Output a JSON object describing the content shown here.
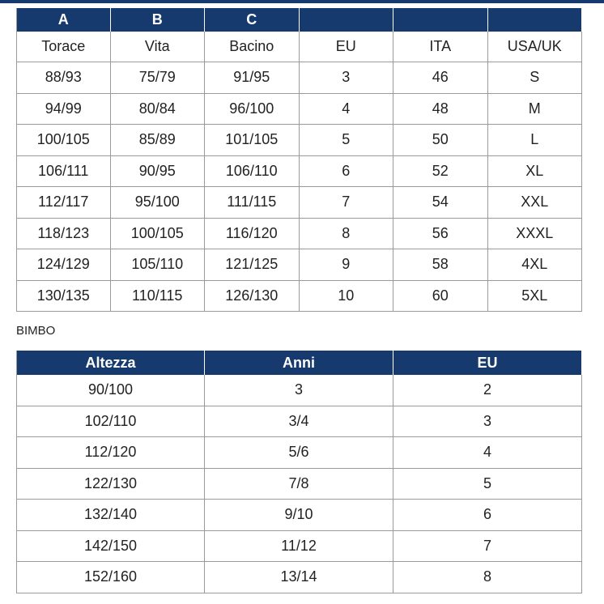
{
  "table1": {
    "header": [
      "A",
      "B",
      "C"
    ],
    "columns": [
      "Torace",
      "Vita",
      "Bacino",
      "EU",
      "ITA",
      "USA/UK"
    ],
    "rows": [
      [
        "88/93",
        "75/79",
        "91/95",
        "3",
        "46",
        "S"
      ],
      [
        "94/99",
        "80/84",
        "96/100",
        "4",
        "48",
        "M"
      ],
      [
        "100/105",
        "85/89",
        "101/105",
        "5",
        "50",
        "L"
      ],
      [
        "106/111",
        "90/95",
        "106/110",
        "6",
        "52",
        "XL"
      ],
      [
        "112/117",
        "95/100",
        "111/115",
        "7",
        "54",
        "XXL"
      ],
      [
        "118/123",
        "100/105",
        "116/120",
        "8",
        "56",
        "XXXL"
      ],
      [
        "124/129",
        "105/110",
        "121/125",
        "9",
        "58",
        "4XL"
      ],
      [
        "130/135",
        "110/115",
        "126/130",
        "10",
        "60",
        "5XL"
      ]
    ]
  },
  "section_title": "BIMBO",
  "table2": {
    "header": [
      "Altezza",
      "Anni",
      "EU"
    ],
    "rows": [
      [
        "90/100",
        "3",
        "2"
      ],
      [
        "102/110",
        "3/4",
        "3"
      ],
      [
        "112/120",
        "5/6",
        "4"
      ],
      [
        "122/130",
        "7/8",
        "5"
      ],
      [
        "132/140",
        "9/10",
        "6"
      ],
      [
        "142/150",
        "11/12",
        "7"
      ],
      [
        "152/160",
        "13/14",
        "8"
      ]
    ]
  }
}
